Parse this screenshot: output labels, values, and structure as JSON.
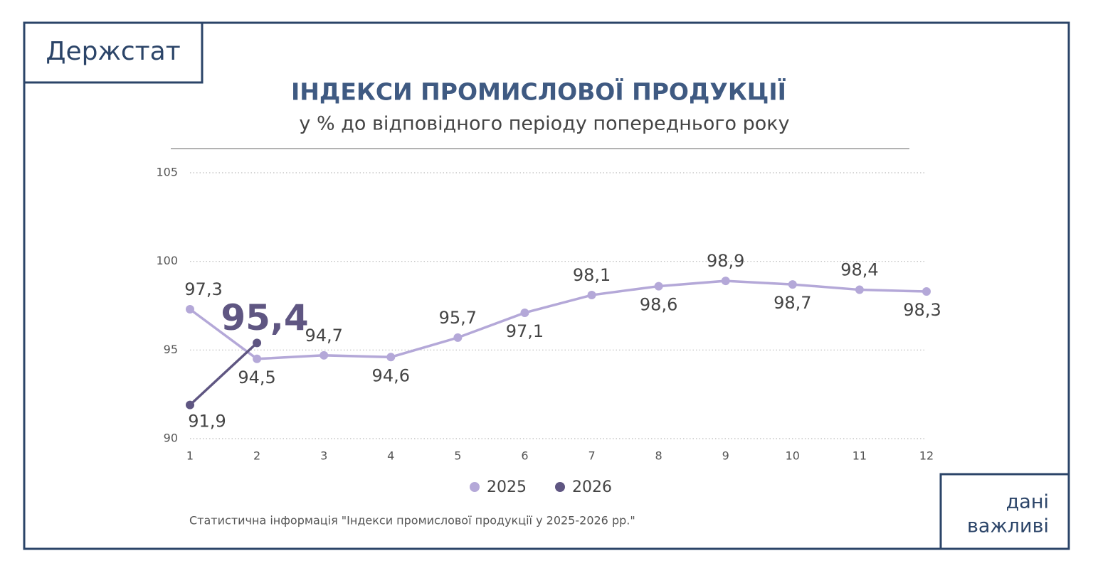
{
  "brand": "Держстат",
  "corner_text": [
    "дані",
    "важливі"
  ],
  "source": "Статистична інформація \"Індекси промислової продукції у 2025-2026 рр.\"",
  "chart_data": {
    "type": "line",
    "title": "ІНДЕКСИ ПРОМИСЛОВОЇ ПРОДУКЦІЇ",
    "subtitle": "у % до відповідного періоду попереднього року",
    "x": [
      1,
      2,
      3,
      4,
      5,
      6,
      7,
      8,
      9,
      10,
      11,
      12
    ],
    "xlim": [
      1,
      12
    ],
    "xticks": [
      1,
      2,
      3,
      4,
      5,
      6,
      7,
      8,
      9,
      10,
      11,
      12
    ],
    "ylim": [
      90,
      105
    ],
    "yticks": [
      90,
      95,
      100,
      105
    ],
    "grid": true,
    "legend": "bottom",
    "series": [
      {
        "name": "2025",
        "color": "#b4a8d8",
        "values": [
          97.3,
          94.5,
          94.7,
          94.6,
          95.7,
          97.1,
          98.1,
          98.6,
          98.9,
          98.7,
          98.4,
          98.3
        ],
        "value_labels": [
          "97,3",
          "94,5",
          "94,7",
          "94,6",
          "95,7",
          "97,1",
          "98,1",
          "98,6",
          "98,9",
          "98,7",
          "98,4",
          "98,3"
        ]
      },
      {
        "name": "2026",
        "color": "#5f5682",
        "values": [
          91.9,
          95.4,
          null,
          null,
          null,
          null,
          null,
          null,
          null,
          null,
          null,
          null
        ],
        "value_labels": [
          "91,9",
          "95,4",
          null,
          null,
          null,
          null,
          null,
          null,
          null,
          null,
          null,
          null
        ]
      }
    ]
  }
}
